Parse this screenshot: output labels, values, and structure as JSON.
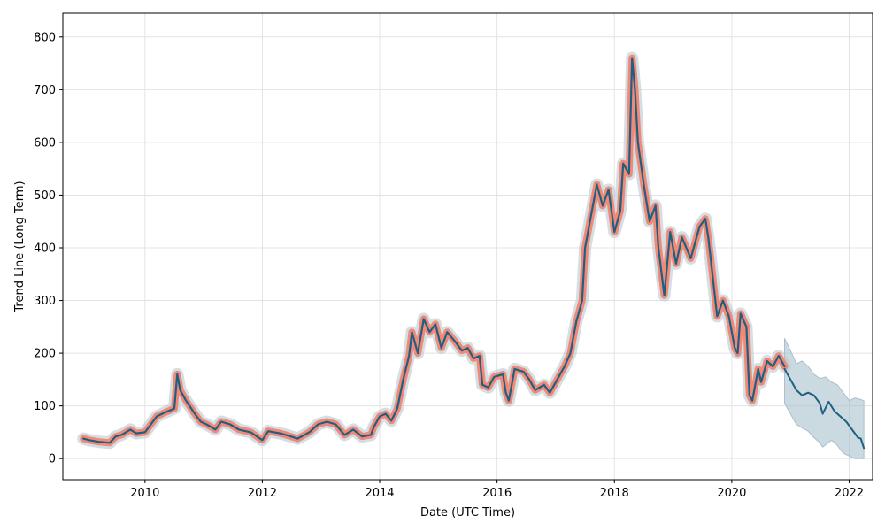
{
  "chart_data": {
    "type": "line",
    "xlabel": "Date (UTC Time)",
    "ylabel": "Trend Line (Long Term)",
    "xlim": [
      2008.6,
      2022.4
    ],
    "ylim": [
      -40,
      845
    ],
    "grid": true,
    "x_ticks": [
      2010,
      2012,
      2014,
      2016,
      2018,
      2020,
      2022
    ],
    "x_tick_labels": [
      "2010",
      "2012",
      "2014",
      "2016",
      "2018",
      "2020",
      "2022"
    ],
    "y_ticks": [
      0,
      100,
      200,
      300,
      400,
      500,
      600,
      700,
      800
    ],
    "y_tick_labels": [
      "0",
      "100",
      "200",
      "300",
      "400",
      "500",
      "600",
      "700",
      "800"
    ],
    "colors": {
      "historical_band": "#f08a78",
      "trend_line": "#1f5f82",
      "noise_band": "#b8c8d0",
      "forecast_band": "#a9c0cc",
      "grid": "#e3e3e3"
    },
    "historical": [
      [
        2008.95,
        38
      ],
      [
        2009.05,
        35
      ],
      [
        2009.2,
        32
      ],
      [
        2009.4,
        30
      ],
      [
        2009.5,
        42
      ],
      [
        2009.6,
        45
      ],
      [
        2009.75,
        55
      ],
      [
        2009.85,
        48
      ],
      [
        2010.0,
        50
      ],
      [
        2010.1,
        65
      ],
      [
        2010.2,
        80
      ],
      [
        2010.35,
        88
      ],
      [
        2010.5,
        95
      ],
      [
        2010.55,
        160
      ],
      [
        2010.6,
        130
      ],
      [
        2010.7,
        110
      ],
      [
        2010.85,
        85
      ],
      [
        2010.95,
        70
      ],
      [
        2011.05,
        65
      ],
      [
        2011.2,
        55
      ],
      [
        2011.3,
        70
      ],
      [
        2011.45,
        65
      ],
      [
        2011.6,
        55
      ],
      [
        2011.8,
        50
      ],
      [
        2012.0,
        35
      ],
      [
        2012.1,
        52
      ],
      [
        2012.3,
        48
      ],
      [
        2012.4,
        45
      ],
      [
        2012.6,
        38
      ],
      [
        2012.8,
        50
      ],
      [
        2012.95,
        65
      ],
      [
        2013.1,
        70
      ],
      [
        2013.25,
        65
      ],
      [
        2013.4,
        45
      ],
      [
        2013.55,
        55
      ],
      [
        2013.7,
        42
      ],
      [
        2013.85,
        45
      ],
      [
        2013.9,
        60
      ],
      [
        2014.0,
        80
      ],
      [
        2014.1,
        85
      ],
      [
        2014.2,
        72
      ],
      [
        2014.3,
        95
      ],
      [
        2014.4,
        150
      ],
      [
        2014.5,
        195
      ],
      [
        2014.55,
        240
      ],
      [
        2014.65,
        200
      ],
      [
        2014.75,
        265
      ],
      [
        2014.85,
        240
      ],
      [
        2014.95,
        255
      ],
      [
        2015.05,
        210
      ],
      [
        2015.15,
        240
      ],
      [
        2015.3,
        220
      ],
      [
        2015.4,
        205
      ],
      [
        2015.5,
        210
      ],
      [
        2015.6,
        190
      ],
      [
        2015.7,
        195
      ],
      [
        2015.75,
        140
      ],
      [
        2015.85,
        135
      ],
      [
        2015.95,
        155
      ],
      [
        2016.1,
        160
      ],
      [
        2016.15,
        125
      ],
      [
        2016.2,
        110
      ],
      [
        2016.3,
        170
      ],
      [
        2016.45,
        165
      ],
      [
        2016.55,
        150
      ],
      [
        2016.65,
        130
      ],
      [
        2016.8,
        140
      ],
      [
        2016.9,
        125
      ],
      [
        2017.0,
        145
      ],
      [
        2017.15,
        175
      ],
      [
        2017.25,
        200
      ],
      [
        2017.35,
        260
      ],
      [
        2017.45,
        300
      ],
      [
        2017.5,
        400
      ],
      [
        2017.6,
        460
      ],
      [
        2017.7,
        520
      ],
      [
        2017.8,
        480
      ],
      [
        2017.9,
        510
      ],
      [
        2018.0,
        430
      ],
      [
        2018.1,
        470
      ],
      [
        2018.15,
        560
      ],
      [
        2018.25,
        540
      ],
      [
        2018.3,
        760
      ],
      [
        2018.35,
        700
      ],
      [
        2018.4,
        600
      ],
      [
        2018.5,
        520
      ],
      [
        2018.6,
        450
      ],
      [
        2018.7,
        480
      ],
      [
        2018.75,
        400
      ],
      [
        2018.85,
        310
      ],
      [
        2018.95,
        430
      ],
      [
        2019.05,
        370
      ],
      [
        2019.15,
        420
      ],
      [
        2019.3,
        380
      ],
      [
        2019.45,
        440
      ],
      [
        2019.55,
        455
      ],
      [
        2019.6,
        420
      ],
      [
        2019.7,
        320
      ],
      [
        2019.75,
        270
      ],
      [
        2019.85,
        300
      ],
      [
        2019.95,
        270
      ],
      [
        2020.05,
        210
      ],
      [
        2020.1,
        200
      ],
      [
        2020.15,
        275
      ],
      [
        2020.25,
        250
      ],
      [
        2020.3,
        120
      ],
      [
        2020.35,
        110
      ],
      [
        2020.45,
        170
      ],
      [
        2020.5,
        145
      ],
      [
        2020.6,
        185
      ],
      [
        2020.7,
        175
      ],
      [
        2020.8,
        195
      ],
      [
        2020.9,
        175
      ]
    ],
    "forecast": [
      [
        2020.9,
        170
      ],
      [
        2021.0,
        150
      ],
      [
        2021.1,
        130
      ],
      [
        2021.2,
        120
      ],
      [
        2021.3,
        125
      ],
      [
        2021.4,
        120
      ],
      [
        2021.5,
        105
      ],
      [
        2021.55,
        85
      ],
      [
        2021.65,
        108
      ],
      [
        2021.75,
        90
      ],
      [
        2021.85,
        80
      ],
      [
        2021.95,
        70
      ],
      [
        2022.05,
        55
      ],
      [
        2022.15,
        40
      ],
      [
        2022.2,
        38
      ],
      [
        2022.25,
        20
      ]
    ],
    "forecast_upper": [
      [
        2020.9,
        228
      ],
      [
        2021.0,
        205
      ],
      [
        2021.1,
        180
      ],
      [
        2021.2,
        185
      ],
      [
        2021.3,
        175
      ],
      [
        2021.4,
        160
      ],
      [
        2021.5,
        152
      ],
      [
        2021.6,
        155
      ],
      [
        2021.7,
        145
      ],
      [
        2021.8,
        140
      ],
      [
        2021.9,
        125
      ],
      [
        2022.0,
        110
      ],
      [
        2022.1,
        115
      ],
      [
        2022.2,
        112
      ],
      [
        2022.25,
        110
      ]
    ],
    "forecast_lower": [
      [
        2020.9,
        105
      ],
      [
        2021.0,
        85
      ],
      [
        2021.1,
        65
      ],
      [
        2021.2,
        58
      ],
      [
        2021.3,
        52
      ],
      [
        2021.4,
        40
      ],
      [
        2021.5,
        30
      ],
      [
        2021.55,
        22
      ],
      [
        2021.7,
        35
      ],
      [
        2021.8,
        25
      ],
      [
        2021.9,
        10
      ],
      [
        2022.0,
        5
      ],
      [
        2022.1,
        0
      ],
      [
        2022.25,
        0
      ]
    ]
  }
}
